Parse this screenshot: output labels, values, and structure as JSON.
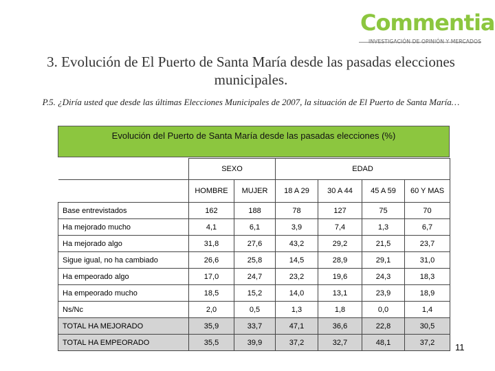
{
  "logo": {
    "word": "Commentia",
    "tagline": "INVESTIGACIÓN DE OPINIÓN Y MERCADOS"
  },
  "title": "3.  Evolución de El Puerto de Santa María desde las pasadas elecciones municipales.",
  "question": "P.5. ¿Diría usted que desde las últimas Elecciones Municipales de 2007, la situación de El Puerto de Santa María…",
  "table": {
    "banner": "Evolución del Puerto de Santa María desde las pasadas elecciones (%)",
    "groups": {
      "sexo": "SEXO",
      "edad": "EDAD"
    },
    "columns": [
      "HOMBRE",
      "MUJER",
      "18 A 29",
      "30 A 44",
      "45 A 59",
      "60 Y MAS"
    ],
    "rows": [
      {
        "label": "Base entrevistados",
        "values": [
          "162",
          "188",
          "78",
          "127",
          "75",
          "70"
        ]
      },
      {
        "label": "Ha mejorado mucho",
        "values": [
          "4,1",
          "6,1",
          "3,9",
          "7,4",
          "1,3",
          "6,7"
        ]
      },
      {
        "label": "Ha mejorado algo",
        "values": [
          "31,8",
          "27,6",
          "43,2",
          "29,2",
          "21,5",
          "23,7"
        ]
      },
      {
        "label": "Sigue igual, no ha cambiado",
        "values": [
          "26,6",
          "25,8",
          "14,5",
          "28,9",
          "29,1",
          "31,0"
        ]
      },
      {
        "label": "Ha empeorado algo",
        "values": [
          "17,0",
          "24,7",
          "23,2",
          "19,6",
          "24,3",
          "18,3"
        ]
      },
      {
        "label": "Ha empeorado mucho",
        "values": [
          "18,5",
          "15,2",
          "14,0",
          "13,1",
          "23,9",
          "18,9"
        ]
      },
      {
        "label": "Ns/Nc",
        "values": [
          "2,0",
          "0,5",
          "1,3",
          "1,8",
          "0,0",
          "1,4"
        ]
      },
      {
        "label": "TOTAL HA MEJORADO",
        "values": [
          "35,9",
          "33,7",
          "47,1",
          "36,6",
          "22,8",
          "30,5"
        ]
      },
      {
        "label": "TOTAL HA EMPEORADO",
        "values": [
          "35,5",
          "39,9",
          "37,2",
          "32,7",
          "48,1",
          "37,2"
        ]
      }
    ]
  },
  "page_number": "11",
  "colors": {
    "accent_green": "#8cc63f",
    "total_row_grey": "#d4d4d4"
  }
}
